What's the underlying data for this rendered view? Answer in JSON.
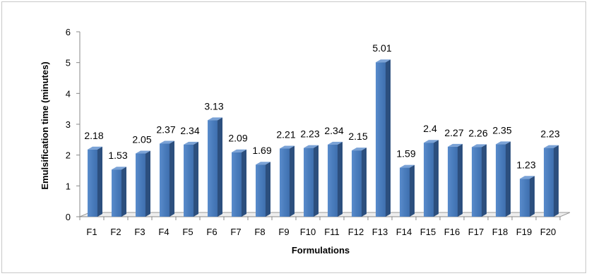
{
  "chart_data": {
    "type": "bar",
    "title": "",
    "xlabel": "Formulations",
    "ylabel": "Emulsification time (minutes)",
    "ylim": [
      0,
      6
    ],
    "yticks": [
      0,
      1,
      2,
      3,
      4,
      5,
      6
    ],
    "grid": false,
    "legend": "none",
    "bar_color": "#4f81bd",
    "categories": [
      "F1",
      "F2",
      "F3",
      "F4",
      "F5",
      "F6",
      "F7",
      "F8",
      "F9",
      "F10",
      "F11",
      "F12",
      "F13",
      "F14",
      "F15",
      "F16",
      "F17",
      "F18",
      "F19",
      "F20"
    ],
    "values": [
      2.18,
      1.53,
      2.05,
      2.37,
      2.34,
      3.13,
      2.09,
      1.69,
      2.21,
      2.23,
      2.34,
      2.15,
      5.01,
      1.59,
      2.4,
      2.27,
      2.26,
      2.35,
      1.23,
      2.23
    ],
    "data_labels": [
      "2.18",
      "1.53",
      "2.05",
      "2.37",
      "2.34",
      "3.13",
      "2.09",
      "1.69",
      "2.21",
      "2.23",
      "2.34",
      "2.15",
      "5.01",
      "1.59",
      "2.4",
      "2.27",
      "2.26",
      "2.35",
      "1.23",
      "2.23"
    ]
  }
}
